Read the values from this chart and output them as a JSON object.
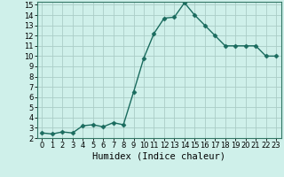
{
  "x": [
    0,
    1,
    2,
    3,
    4,
    5,
    6,
    7,
    8,
    9,
    10,
    11,
    12,
    13,
    14,
    15,
    16,
    17,
    18,
    19,
    20,
    21,
    22,
    23
  ],
  "y": [
    2.5,
    2.4,
    2.6,
    2.5,
    3.2,
    3.3,
    3.1,
    3.5,
    3.3,
    6.5,
    9.8,
    12.2,
    13.7,
    13.8,
    15.2,
    14.0,
    13.0,
    12.0,
    11.0,
    11.0,
    11.0,
    11.0,
    10.0,
    10.0
  ],
  "line_color": "#1a6b5e",
  "marker": "D",
  "marker_size": 2.5,
  "bg_color": "#cff0ea",
  "grid_color": "#aacdc7",
  "xlabel": "Humidex (Indice chaleur)",
  "ylim": [
    2,
    15.3
  ],
  "xlim": [
    -0.5,
    23.5
  ],
  "yticks": [
    2,
    3,
    4,
    5,
    6,
    7,
    8,
    9,
    10,
    11,
    12,
    13,
    14,
    15
  ],
  "xticks": [
    0,
    1,
    2,
    3,
    4,
    5,
    6,
    7,
    8,
    9,
    10,
    11,
    12,
    13,
    14,
    15,
    16,
    17,
    18,
    19,
    20,
    21,
    22,
    23
  ],
  "tick_fontsize": 6,
  "xlabel_fontsize": 7.5,
  "line_width": 1.0
}
